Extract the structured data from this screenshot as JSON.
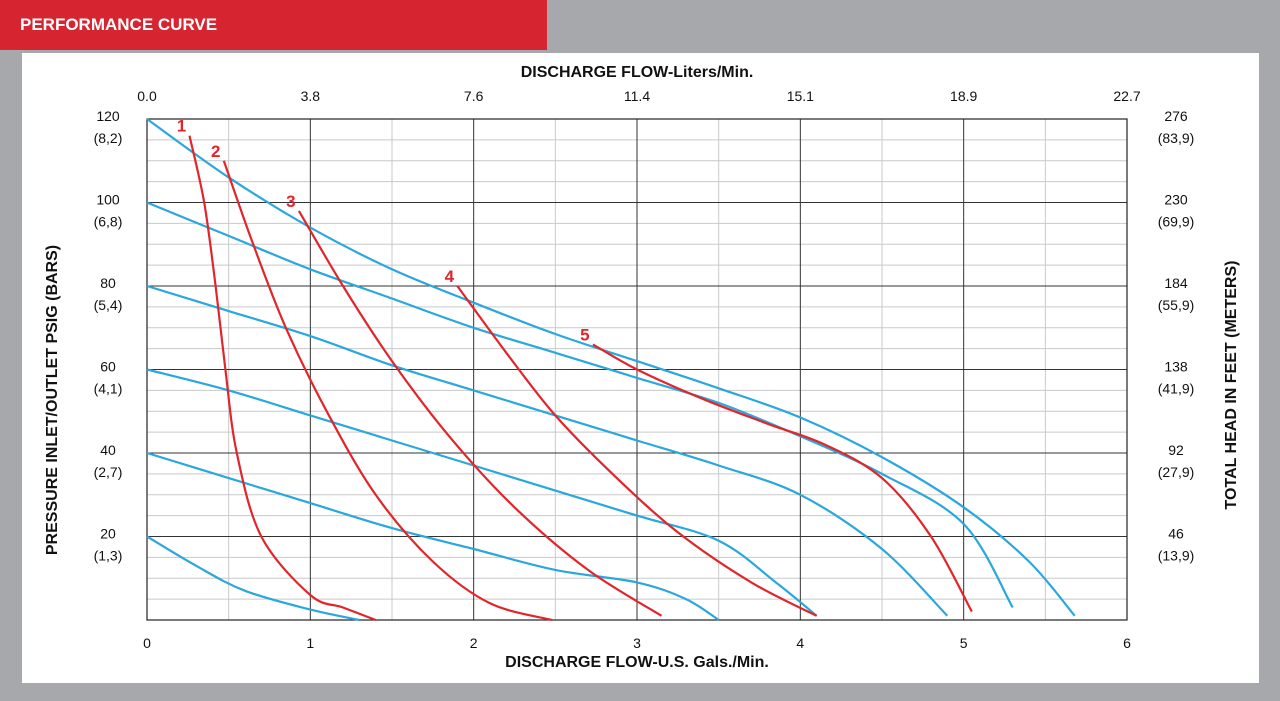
{
  "header": {
    "title": "PERFORMANCE CURVE"
  },
  "colors": {
    "banner": "#d62530",
    "pressure_curves": "#2aa7dd",
    "flow_curves": "#e0262b",
    "frame": "#a6a8ab"
  },
  "chart_data": {
    "type": "line",
    "title": "",
    "xlabel": "DISCHARGE FLOW-U.S. Gals./Min.",
    "x2label": "DISCHARGE FLOW-Liters/Min.",
    "ylabel": "PRESSURE INLET/OUTLET PSIG (BARS)",
    "y2label": "TOTAL HEAD IN FEET (METERS)",
    "xlim": [
      0,
      6
    ],
    "ylim": [
      0,
      120
    ],
    "grid": true,
    "x_ticks": [
      "0",
      "1",
      "2",
      "3",
      "4",
      "5",
      "6"
    ],
    "x2_ticks": [
      "0.0",
      "3.8",
      "7.6",
      "11.4",
      "15.1",
      "18.9",
      "22.7"
    ],
    "y_ticks": [
      {
        "value": 120,
        "psi": "120",
        "bar": "(8,2)",
        "ft": "276",
        "m": "(83,9)"
      },
      {
        "value": 100,
        "psi": "100",
        "bar": "(6,8)",
        "ft": "230",
        "m": "(69,9)"
      },
      {
        "value": 80,
        "psi": "80",
        "bar": "(5,4)",
        "ft": "184",
        "m": "(55,9)"
      },
      {
        "value": 60,
        "psi": "60",
        "bar": "(4,1)",
        "ft": "138",
        "m": "(41,9)"
      },
      {
        "value": 40,
        "psi": "40",
        "bar": "(2,7)",
        "ft": "92",
        "m": "(27,9)"
      },
      {
        "value": 20,
        "psi": "20",
        "bar": "(1,3)",
        "ft": "46",
        "m": "(13,9)"
      }
    ],
    "pressure_curves": [
      {
        "points": [
          [
            0,
            120
          ],
          [
            0.5,
            106
          ],
          [
            1,
            94
          ],
          [
            1.5,
            84
          ],
          [
            2,
            76
          ],
          [
            2.5,
            68.5
          ],
          [
            3,
            62
          ],
          [
            3.5,
            55.5
          ],
          [
            4,
            48.5
          ],
          [
            4.5,
            39
          ],
          [
            5,
            27
          ],
          [
            5.4,
            14
          ],
          [
            5.68,
            1
          ]
        ]
      },
      {
        "points": [
          [
            0,
            100
          ],
          [
            0.5,
            92
          ],
          [
            1,
            84
          ],
          [
            1.5,
            77
          ],
          [
            2,
            70
          ],
          [
            2.5,
            64
          ],
          [
            3,
            58
          ],
          [
            3.5,
            52
          ],
          [
            4,
            44
          ],
          [
            4.5,
            35
          ],
          [
            5,
            23
          ],
          [
            5.3,
            3
          ]
        ]
      },
      {
        "points": [
          [
            0,
            80
          ],
          [
            0.5,
            74
          ],
          [
            1,
            68
          ],
          [
            1.5,
            61
          ],
          [
            2,
            55
          ],
          [
            2.5,
            49
          ],
          [
            3,
            43
          ],
          [
            3.5,
            37
          ],
          [
            4,
            30
          ],
          [
            4.5,
            17
          ],
          [
            4.9,
            1
          ]
        ]
      },
      {
        "points": [
          [
            0,
            60
          ],
          [
            0.5,
            55
          ],
          [
            1,
            49
          ],
          [
            1.5,
            43
          ],
          [
            2,
            37
          ],
          [
            2.5,
            31
          ],
          [
            3,
            25
          ],
          [
            3.5,
            19
          ],
          [
            3.85,
            9
          ],
          [
            4.1,
            1
          ]
        ]
      },
      {
        "points": [
          [
            0,
            40
          ],
          [
            0.5,
            34
          ],
          [
            1,
            28
          ],
          [
            1.5,
            22
          ],
          [
            2,
            17
          ],
          [
            2.5,
            12
          ],
          [
            3,
            9
          ],
          [
            3.3,
            5
          ],
          [
            3.5,
            0
          ]
        ]
      },
      {
        "points": [
          [
            0,
            20
          ],
          [
            0.3,
            13
          ],
          [
            0.6,
            7
          ],
          [
            1,
            2.5
          ],
          [
            1.3,
            0
          ]
        ]
      }
    ],
    "flow_curves": [
      {
        "label": "1",
        "points": [
          [
            0.26,
            116
          ],
          [
            0.35,
            100
          ],
          [
            0.42,
            80
          ],
          [
            0.48,
            60
          ],
          [
            0.55,
            40
          ],
          [
            0.7,
            20
          ],
          [
            1,
            6
          ],
          [
            1.2,
            3
          ],
          [
            1.4,
            0
          ]
        ]
      },
      {
        "label": "2",
        "points": [
          [
            0.47,
            110
          ],
          [
            0.65,
            90
          ],
          [
            0.85,
            70
          ],
          [
            1.1,
            50
          ],
          [
            1.4,
            30
          ],
          [
            1.75,
            14
          ],
          [
            2.1,
            4
          ],
          [
            2.48,
            0
          ]
        ]
      },
      {
        "label": "3",
        "points": [
          [
            0.93,
            98
          ],
          [
            1.2,
            80
          ],
          [
            1.5,
            62
          ],
          [
            1.85,
            44
          ],
          [
            2.25,
            27
          ],
          [
            2.7,
            12
          ],
          [
            3.15,
            1
          ]
        ]
      },
      {
        "label": "4",
        "points": [
          [
            1.9,
            80
          ],
          [
            2.2,
            64
          ],
          [
            2.5,
            49
          ],
          [
            2.85,
            35
          ],
          [
            3.25,
            21
          ],
          [
            3.7,
            9
          ],
          [
            4.1,
            1
          ]
        ]
      },
      {
        "label": "5",
        "points": [
          [
            2.73,
            66
          ],
          [
            3,
            60
          ],
          [
            3.4,
            53
          ],
          [
            3.8,
            47
          ],
          [
            4.15,
            42
          ],
          [
            4.5,
            34
          ],
          [
            4.8,
            20
          ],
          [
            5.05,
            2
          ]
        ]
      }
    ]
  }
}
